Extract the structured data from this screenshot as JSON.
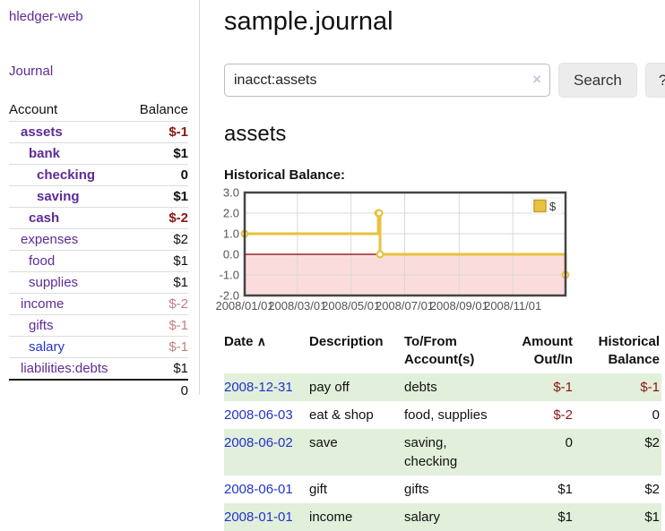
{
  "app": {
    "brand": "hledger-web",
    "nav": {
      "journal": "Journal"
    }
  },
  "sidebar": {
    "accounts_header": {
      "account": "Account",
      "balance": "Balance"
    },
    "accounts": [
      {
        "name": "assets",
        "depth": 1,
        "bold": true,
        "link_color": "purple",
        "balance": "$-1",
        "balance_color": "negative"
      },
      {
        "name": "bank",
        "depth": 2,
        "bold": true,
        "link_color": "purple",
        "balance": "$1",
        "balance_color": "normal"
      },
      {
        "name": "checking",
        "depth": 3,
        "bold": true,
        "link_color": "purple",
        "balance": "0",
        "balance_color": "normal"
      },
      {
        "name": "saving",
        "depth": 3,
        "bold": true,
        "link_color": "purple",
        "balance": "$1",
        "balance_color": "normal"
      },
      {
        "name": "cash",
        "depth": 2,
        "bold": true,
        "link_color": "purple",
        "balance": "$-2",
        "balance_color": "negative"
      },
      {
        "name": "expenses",
        "depth": 1,
        "bold": false,
        "link_color": "purple",
        "balance": "$2",
        "balance_color": "normal"
      },
      {
        "name": "food",
        "depth": 2,
        "bold": false,
        "link_color": "purple",
        "balance": "$1",
        "balance_color": "normal"
      },
      {
        "name": "supplies",
        "depth": 2,
        "bold": false,
        "link_color": "purple",
        "balance": "$1",
        "balance_color": "normal"
      },
      {
        "name": "income",
        "depth": 1,
        "bold": false,
        "link_color": "purple",
        "balance": "$-2",
        "balance_color": "negative-faint"
      },
      {
        "name": "gifts",
        "depth": 2,
        "bold": false,
        "link_color": "purple",
        "balance": "$-1",
        "balance_color": "negative-faint"
      },
      {
        "name": "salary",
        "depth": 2,
        "bold": false,
        "link_color": "blue",
        "balance": "$-1",
        "balance_color": "negative-faint"
      },
      {
        "name": "liabilities:debts",
        "depth": 1,
        "bold": false,
        "link_color": "purple",
        "balance": "$1",
        "balance_color": "normal"
      }
    ],
    "total": "0"
  },
  "main": {
    "title": "sample.journal",
    "search": {
      "value": "inacct:assets",
      "clear_icon": "×",
      "search_label": "Search",
      "help_label": "?"
    },
    "account_heading": "assets",
    "chart_heading": "Historical Balance:"
  },
  "chart_data": {
    "type": "line",
    "step": true,
    "title": "Historical Balance:",
    "series": [
      {
        "name": "$",
        "color": "#e8c240",
        "points": [
          [
            "2008-01-01",
            1
          ],
          [
            "2008-06-01",
            2
          ],
          [
            "2008-06-02",
            2
          ],
          [
            "2008-06-03",
            0
          ],
          [
            "2008-12-31",
            -1
          ]
        ]
      }
    ],
    "x_range": [
      "2008-01-01",
      "2008-12-31"
    ],
    "ylim": [
      -2,
      3
    ],
    "y_ticks": [
      "3.0",
      "2.0",
      "1.0",
      "0.0",
      "-1.0",
      "-2.0"
    ],
    "x_ticks": [
      "2008/01/01",
      "2008/03/01",
      "2008/05/01",
      "2008/07/01",
      "2008/09/01",
      "2008/11/01"
    ],
    "legend": {
      "label": "$",
      "position": "top-right"
    },
    "grid": true,
    "negative_region_color": "#fbdcdc",
    "zero_line_color": "#8b0000",
    "plot_border_color": "#454545"
  },
  "register": {
    "columns": [
      "Date",
      "Description",
      "To/From Account(s)",
      "Amount Out/In",
      "Historical Balance"
    ],
    "sort_icon": "∧",
    "rows": [
      {
        "date": "2008-12-31",
        "description": "pay off",
        "accounts": "debts",
        "amount": "$-1",
        "amount_negative": true,
        "balance": "$-1",
        "balance_negative": true
      },
      {
        "date": "2008-06-03",
        "description": "eat & shop",
        "accounts": "food, supplies",
        "amount": "$-2",
        "amount_negative": true,
        "balance": "0",
        "balance_negative": false
      },
      {
        "date": "2008-06-02",
        "description": "save",
        "accounts": "saving, checking",
        "amount": "0",
        "amount_negative": false,
        "balance": "$2",
        "balance_negative": false
      },
      {
        "date": "2008-06-01",
        "description": "gift",
        "accounts": "gifts",
        "amount": "$1",
        "amount_negative": false,
        "balance": "$2",
        "balance_negative": false
      },
      {
        "date": "2008-01-01",
        "description": "income",
        "accounts": "salary",
        "amount": "$1",
        "amount_negative": false,
        "balance": "$1",
        "balance_negative": false
      }
    ]
  }
}
